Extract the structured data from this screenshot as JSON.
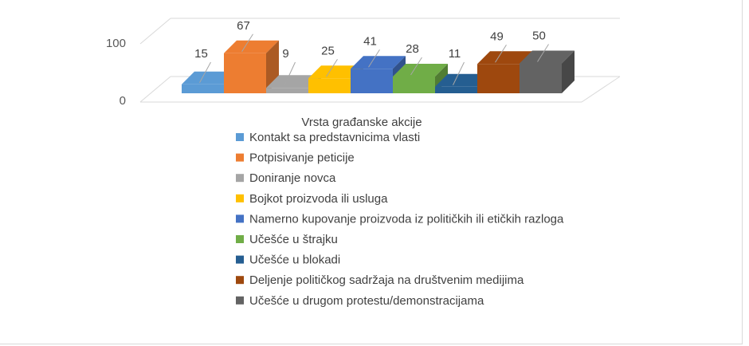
{
  "chart_data": {
    "type": "bar",
    "style": "3d-column",
    "xlabel": "Vrsta građanske akcije",
    "ylabel": "",
    "ylim": [
      0,
      100
    ],
    "yticks": [
      0,
      100
    ],
    "grid": true,
    "legend_position": "bottom",
    "series": [
      {
        "name": "Kontakt sa predstavnicima vlasti",
        "value": 15,
        "color": "#5b9bd5"
      },
      {
        "name": "Potpisivanje peticije",
        "value": 67,
        "color": "#ed7d31"
      },
      {
        "name": "Doniranje novca",
        "value": 9,
        "color": "#a5a5a5"
      },
      {
        "name": "Bojkot proizvoda ili usluga",
        "value": 25,
        "color": "#ffc000"
      },
      {
        "name": "Namerno kupovanje proizvoda iz političkih ili etičkih razloga",
        "value": 41,
        "color": "#4472c4"
      },
      {
        "name": "Učešće u štrajku",
        "value": 28,
        "color": "#70ad47"
      },
      {
        "name": "Učešće u blokadi",
        "value": 11,
        "color": "#255e91"
      },
      {
        "name": "Deljenje političkog sadržaja na društvenim medijima",
        "value": 49,
        "color": "#9e480e"
      },
      {
        "name": "Učešće u drugom protestu/demonstracijama",
        "value": 50,
        "color": "#636363"
      }
    ]
  }
}
